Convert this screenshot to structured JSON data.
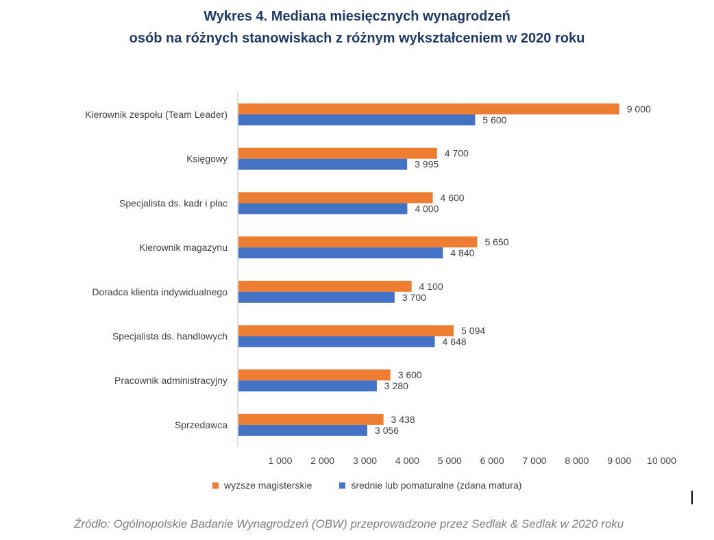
{
  "title": {
    "line1": "Wykres 4. Mediana miesięcznych wynagrodzeń",
    "line2": "osób na różnych stanowiskach z różnym wykształceniem w 2020 roku"
  },
  "chart_data": {
    "type": "bar",
    "orientation": "horizontal",
    "categories": [
      "Kierownik zespołu (Team Leader)",
      "Księgowy",
      "Specjalista ds. kadr i płac",
      "Kierownik magazynu",
      "Doradca klienta indywidualnego",
      "Specjalista ds. handlowych",
      "Pracownik administracyjny",
      "Sprzedawca"
    ],
    "series": [
      {
        "name": "wyższe magisterskie",
        "color": "#ed7d31",
        "values": [
          9000,
          4700,
          4600,
          5650,
          4100,
          5094,
          3600,
          3438
        ],
        "labels": [
          "9 000",
          "4 700",
          "4 600",
          "5 650",
          "4 100",
          "5 094",
          "3 600",
          "3 438"
        ]
      },
      {
        "name": "średnie lub pomaturalne (zdana matura)",
        "color": "#4472c4",
        "values": [
          5600,
          3995,
          4000,
          4840,
          3700,
          4648,
          3280,
          3056
        ],
        "labels": [
          "5 600",
          "3 995",
          "4 000",
          "4 840",
          "3 700",
          "4 648",
          "3 280",
          "3 056"
        ]
      }
    ],
    "xlim": [
      0,
      10000
    ],
    "ticks": [
      1000,
      2000,
      3000,
      4000,
      5000,
      6000,
      7000,
      8000,
      9000,
      10000
    ],
    "tick_labels": [
      "1 000",
      "2 000",
      "3 000",
      "4 000",
      "5 000",
      "6 000",
      "7 000",
      "8 000",
      "9 000",
      "10 000"
    ],
    "legend_position": "bottom"
  },
  "source": "Źródło: Ogólnopolskie Badanie Wynagrodzeń (OBW) przeprowadzone przez Sedlak & Sedlak w 2020  roku"
}
